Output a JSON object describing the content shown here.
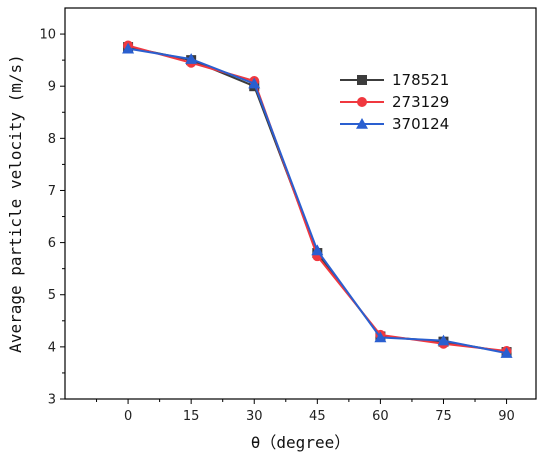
{
  "chart_data": {
    "type": "line",
    "title": "",
    "xlabel": "θ（degree）",
    "ylabel": "Average particle velocity (m/s)",
    "x": [
      0,
      15,
      30,
      45,
      60,
      75,
      90
    ],
    "xlim": [
      -15,
      97
    ],
    "ylim": [
      3,
      10.5
    ],
    "x_ticks": [
      0,
      15,
      30,
      45,
      60,
      75,
      90
    ],
    "y_ticks": [
      3,
      4,
      5,
      6,
      7,
      8,
      9,
      10
    ],
    "grid": false,
    "legend_position": "upper-right",
    "series": [
      {
        "name": "178521",
        "color": "#3c3c3c",
        "marker": "square",
        "values": [
          9.75,
          9.5,
          9.0,
          5.8,
          4.2,
          4.1,
          3.9
        ]
      },
      {
        "name": "273129",
        "color": "#f0383f",
        "marker": "circle",
        "values": [
          9.78,
          9.45,
          9.1,
          5.74,
          4.23,
          4.06,
          3.92
        ]
      },
      {
        "name": "370124",
        "color": "#2a5fd0",
        "marker": "triangle",
        "values": [
          9.72,
          9.52,
          9.05,
          5.85,
          4.18,
          4.12,
          3.88
        ]
      }
    ]
  }
}
